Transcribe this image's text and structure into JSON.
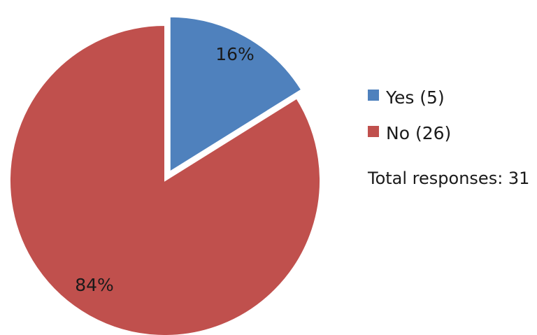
{
  "chart_data": {
    "type": "pie",
    "title": "",
    "categories": [
      "Yes (5)",
      "No (26)"
    ],
    "values": [
      5,
      26
    ],
    "percent_labels": [
      "16%",
      "84%"
    ],
    "colors": [
      "#4f81bd",
      "#c0504d"
    ],
    "exploded": [
      true,
      false
    ],
    "start_angle": "12 o'clock, clockwise",
    "legend": {
      "position": "right",
      "entries": [
        "Yes (5)",
        "No (26)"
      ]
    },
    "annotations": [
      "Total responses: 31"
    ]
  }
}
